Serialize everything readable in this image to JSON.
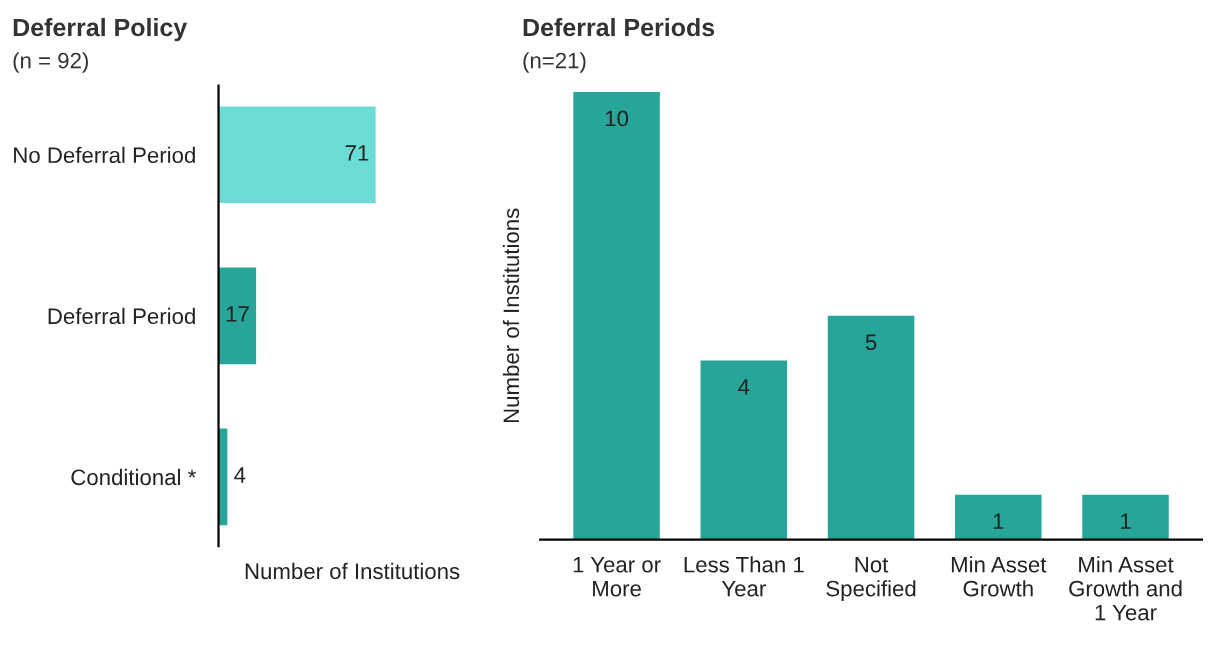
{
  "chart_data": [
    {
      "type": "bar",
      "orientation": "horizontal",
      "title": "Deferral Policy",
      "subtitle": "(n = 92)",
      "xlabel": "Number of Institutions",
      "categories": [
        "No Deferral Period",
        "Deferral Period",
        "Conditional *"
      ],
      "values": [
        71,
        17,
        4
      ],
      "colors": [
        "#6adcd3",
        "#27a599",
        "#27a599"
      ],
      "data_labels": true,
      "grid": false,
      "legend": false
    },
    {
      "type": "bar",
      "title": "Deferral Periods",
      "subtitle": "(n=21)",
      "ylabel": "Number of Institutions",
      "categories": [
        "1 Year or\nMore",
        "Less Than 1\nYear",
        "Not\nSpecified",
        "Min Asset\nGrowth",
        "Min Asset\nGrowth and\n1 Year"
      ],
      "values": [
        10,
        4,
        5,
        1,
        1
      ],
      "color": "#27a599",
      "data_labels": true,
      "grid": false,
      "legend": false
    }
  ]
}
